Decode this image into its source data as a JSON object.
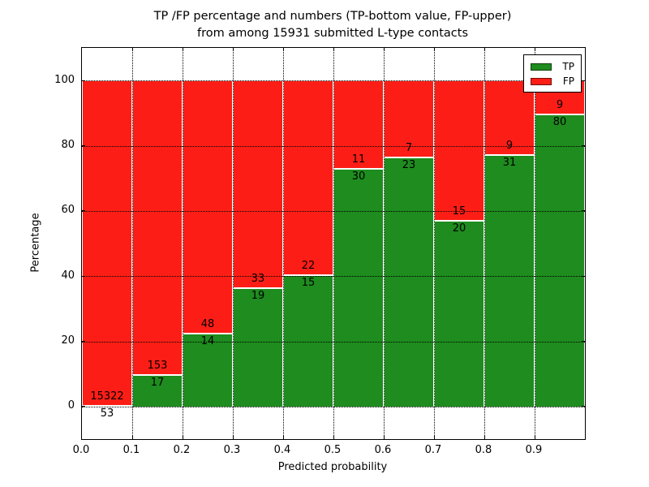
{
  "figure": {
    "title_line1": "TP /FP percentage and numbers (TP-bottom value, FP-upper)",
    "title_line2": "from among 15931 submitted L-type contacts"
  },
  "chart_data": {
    "type": "bar",
    "subtype": "stacked-100-percent",
    "title": "TP /FP percentage and numbers (TP-bottom value, FP-upper) from among 15931 submitted L-type contacts",
    "xlabel": "Predicted probability",
    "ylabel": "Percentage",
    "total_contacts": 15931,
    "bin_width": 0.1,
    "bin_starts": [
      0.0,
      0.1,
      0.2,
      0.3,
      0.4,
      0.5,
      0.6,
      0.7,
      0.8,
      0.9
    ],
    "series": [
      {
        "name": "TP",
        "color": "#1e8c1e",
        "counts": [
          53,
          17,
          14,
          19,
          15,
          30,
          23,
          20,
          31,
          80
        ]
      },
      {
        "name": "FP",
        "color": "#fc1e16",
        "counts": [
          15322,
          153,
          48,
          33,
          22,
          11,
          7,
          15,
          9,
          9
        ]
      }
    ],
    "tp_percent_of_bin": [
      0.3,
      10.0,
      22.6,
      36.5,
      40.5,
      73.2,
      76.7,
      57.1,
      77.5,
      89.9
    ],
    "x_tick_labels": [
      "0.0",
      "0.1",
      "0.2",
      "0.3",
      "0.4",
      "0.5",
      "0.6",
      "0.7",
      "0.8",
      "0.9"
    ],
    "y_tick_values": [
      0,
      20,
      40,
      60,
      80,
      100
    ],
    "xlim": [
      0.0,
      1.0
    ],
    "ylim": [
      -10,
      110
    ],
    "grid": "dotted, both axes",
    "legend": {
      "position": "upper right",
      "entries": [
        {
          "label": "TP",
          "color": "#1e8c1e"
        },
        {
          "label": "FP",
          "color": "#fc1e16"
        }
      ]
    }
  }
}
